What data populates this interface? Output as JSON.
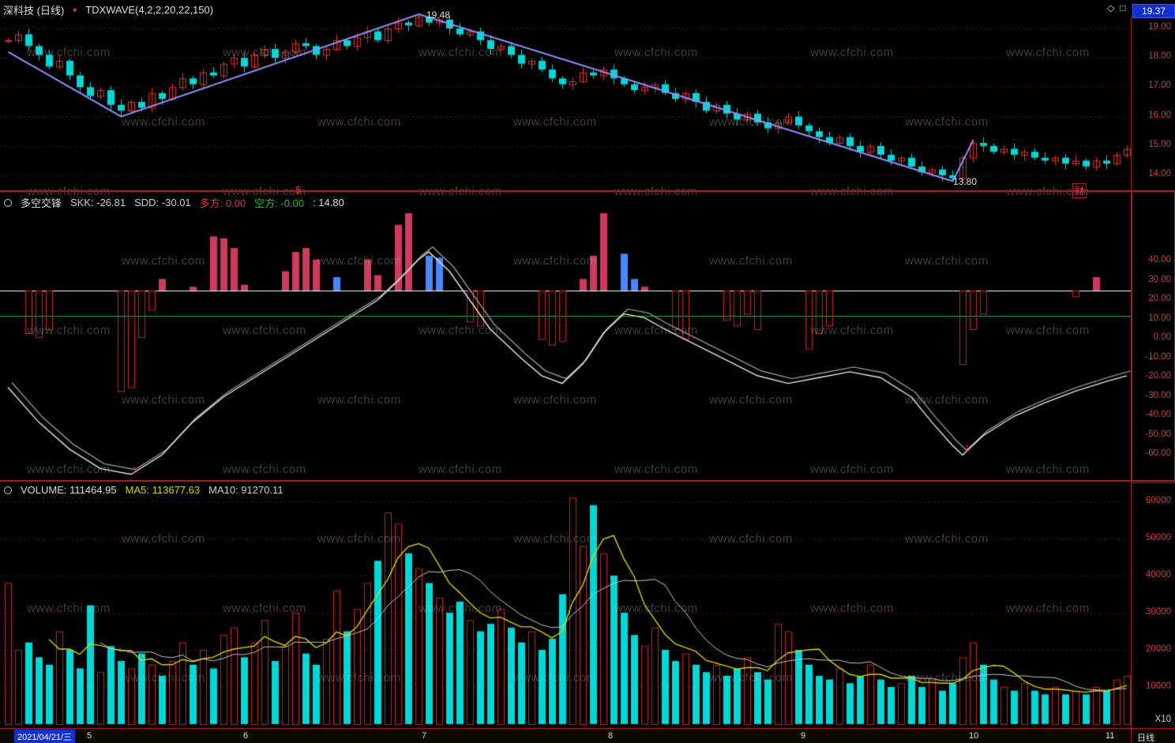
{
  "title_bar": {
    "title": "深科技 (日线)",
    "formula": "TDXWAVE(4,2,2,20,22,150)",
    "last_price": "19.37"
  },
  "icons": {
    "dropdown": "▼",
    "diamond": "◇",
    "restore": "□",
    "arrow_up": "↑"
  },
  "markers": {
    "dollar": "$",
    "cai": "财",
    "peak_label": "19.48",
    "trough_label": "13.80"
  },
  "dk_header": {
    "name": "多空交锋",
    "skk": "SKK: -26.81",
    "sdd": "SDD: -30.01",
    "duo": "多方: 0.00",
    "kong": "空方: -0.00",
    "close": ": 14.80"
  },
  "vol_header": {
    "volume": "VOLUME: 111464.95",
    "ma5": "MA5: 113677.63",
    "ma10": "MA10: 91270.11"
  },
  "axes": {
    "price": [
      "19.00",
      "18.00",
      "17.00",
      "16.00",
      "15.00",
      "14.00"
    ],
    "dk": [
      "40.00",
      "30.00",
      "20.00",
      "10.00",
      "0.00",
      "-10.00",
      "-20.00",
      "-30.00",
      "-40.00",
      "-50.00",
      "-60.00"
    ],
    "vol": [
      "60000",
      "50000",
      "40000",
      "30000",
      "20000",
      "10000"
    ],
    "vol_multiplier": "X10"
  },
  "status_bar": {
    "date": "2021/04/21/三",
    "ticks": [
      "5",
      "6",
      "7",
      "8",
      "9",
      "10",
      "11"
    ],
    "period": "日线"
  },
  "watermark": "www.cfchi.com",
  "colors": {
    "up": "#e03333",
    "down": "#00d7d7",
    "wave": "#9090ff",
    "bar_red": "#cf3a5f",
    "bar_blue": "#4a86ff",
    "outline_red": "#cc2222",
    "ma5": "#d6d600",
    "ma10": "#c8c8c8",
    "axis_text": "#cf3a3a",
    "green_line": "#00b050",
    "zero_line": "#ffffff",
    "price_box_bg": "#1230cf"
  },
  "chart_data": [
    {
      "type": "candlestick",
      "panel": "main",
      "title": "深科技 日线",
      "y_ticks": [
        19,
        18,
        17,
        16,
        15,
        14
      ],
      "ylim": [
        13.5,
        19.6
      ],
      "closes": [
        18.6,
        18.8,
        18.4,
        18.1,
        17.7,
        17.9,
        17.4,
        17.0,
        16.7,
        16.9,
        16.4,
        16.2,
        16.5,
        16.3,
        16.8,
        16.6,
        17.0,
        17.3,
        17.1,
        17.5,
        17.4,
        17.8,
        18.0,
        17.7,
        18.1,
        18.3,
        18.0,
        18.2,
        18.5,
        18.4,
        18.1,
        18.3,
        18.6,
        18.4,
        18.7,
        18.9,
        18.6,
        19.0,
        19.2,
        19.1,
        19.4,
        19.2,
        19.3,
        19.0,
        18.8,
        18.9,
        18.6,
        18.3,
        18.4,
        18.1,
        17.8,
        17.9,
        17.6,
        17.3,
        17.1,
        17.2,
        17.5,
        17.4,
        17.6,
        17.3,
        17.1,
        16.9,
        17.0,
        17.1,
        16.8,
        16.6,
        16.8,
        16.5,
        16.2,
        16.4,
        16.1,
        15.9,
        16.1,
        15.8,
        15.6,
        15.8,
        16.0,
        15.7,
        15.5,
        15.3,
        15.1,
        15.3,
        15.0,
        14.8,
        15.0,
        14.7,
        14.5,
        14.6,
        14.3,
        14.1,
        14.2,
        14.0,
        13.9,
        14.6,
        15.1,
        15.0,
        14.8,
        14.9,
        14.7,
        14.8,
        14.6,
        14.5,
        14.6,
        14.4,
        14.5,
        14.3,
        14.5,
        14.4,
        14.7,
        14.9
      ],
      "wave_points": [
        [
          0,
          18.2
        ],
        [
          11,
          16.0
        ],
        [
          40,
          19.48
        ],
        [
          92,
          13.8
        ],
        [
          94,
          15.2
        ]
      ],
      "peak_label": "19.48",
      "trough_label": "13.80"
    },
    {
      "type": "histogram_line",
      "panel": "多空交锋",
      "skk": -26.81,
      "sdd": -30.01,
      "duofang": 0.0,
      "kongfang": 0.0,
      "price": 14.8,
      "y_ticks": [
        40,
        30,
        20,
        10,
        0,
        -10,
        -20,
        -30,
        -40,
        -50,
        -60
      ],
      "values": [
        0,
        0,
        -22,
        -24,
        -20,
        0,
        0,
        0,
        0,
        0,
        0,
        -52,
        -50,
        -24,
        -10,
        6,
        0,
        0,
        2,
        0,
        28,
        27,
        22,
        3,
        0,
        0,
        0,
        10,
        20,
        22,
        16,
        0,
        7,
        0,
        0,
        16,
        8,
        0,
        34,
        40,
        0,
        18,
        17,
        0,
        0,
        -16,
        -18,
        0,
        0,
        0,
        0,
        0,
        -25,
        -28,
        -26,
        0,
        6,
        18,
        40,
        0,
        19,
        6,
        2,
        0,
        0,
        -20,
        -25,
        0,
        0,
        0,
        -15,
        -18,
        -12,
        -20,
        0,
        0,
        0,
        0,
        -30,
        -22,
        -18,
        0,
        0,
        0,
        0,
        0,
        0,
        0,
        0,
        0,
        0,
        0,
        0,
        -38,
        -20,
        -12,
        0,
        0,
        0,
        0,
        0,
        0,
        0,
        0,
        -3,
        0,
        7,
        0,
        0,
        0
      ],
      "blue_indices": [
        32,
        41,
        42,
        60,
        61
      ],
      "skk_points": [
        [
          0,
          -50
        ],
        [
          3,
          -68
        ],
        [
          6,
          -82
        ],
        [
          9,
          -92
        ],
        [
          12,
          -95
        ],
        [
          15,
          -85
        ],
        [
          18,
          -68
        ],
        [
          21,
          -55
        ],
        [
          24,
          -45
        ],
        [
          27,
          -35
        ],
        [
          30,
          -25
        ],
        [
          33,
          -15
        ],
        [
          36,
          -5
        ],
        [
          38,
          5
        ],
        [
          40,
          16
        ],
        [
          41,
          20
        ],
        [
          43,
          10
        ],
        [
          45,
          -5
        ],
        [
          47,
          -20
        ],
        [
          50,
          -35
        ],
        [
          52,
          -44
        ],
        [
          54,
          -48
        ],
        [
          56,
          -38
        ],
        [
          58,
          -22
        ],
        [
          60,
          -12
        ],
        [
          62,
          -14
        ],
        [
          64,
          -20
        ],
        [
          67,
          -28
        ],
        [
          70,
          -36
        ],
        [
          73,
          -44
        ],
        [
          76,
          -48
        ],
        [
          79,
          -45
        ],
        [
          82,
          -42
        ],
        [
          85,
          -45
        ],
        [
          88,
          -55
        ],
        [
          90,
          -68
        ],
        [
          92,
          -80
        ],
        [
          93,
          -85
        ],
        [
          95,
          -75
        ],
        [
          98,
          -65
        ],
        [
          101,
          -58
        ],
        [
          104,
          -52
        ],
        [
          107,
          -47
        ],
        [
          109,
          -44
        ]
      ],
      "signal_arrow_indices": [
        13,
        94
      ]
    },
    {
      "type": "bar",
      "panel": "VOLUME",
      "volume": 111464.95,
      "ma5": 113677.63,
      "ma10": 91270.11,
      "unit_multiplier": "X10",
      "y_ticks": [
        60000,
        50000,
        40000,
        30000,
        20000,
        10000
      ],
      "values": [
        38000,
        20000,
        22000,
        18000,
        16000,
        25000,
        20000,
        15000,
        32000,
        14000,
        21000,
        17000,
        15000,
        19000,
        16000,
        13000,
        17000,
        22000,
        16000,
        20000,
        15000,
        24000,
        26000,
        18000,
        22000,
        28000,
        17000,
        21000,
        30000,
        19000,
        16000,
        23000,
        36000,
        25000,
        31000,
        38000,
        44000,
        57000,
        54000,
        46000,
        42000,
        38000,
        34000,
        30000,
        33000,
        28000,
        25000,
        27000,
        31000,
        26000,
        22000,
        25000,
        20000,
        23000,
        35000,
        61000,
        48000,
        59000,
        46000,
        40000,
        30000,
        24000,
        21000,
        26000,
        20000,
        17000,
        19000,
        16000,
        14000,
        16000,
        13000,
        15000,
        18000,
        14000,
        12000,
        27000,
        25000,
        20000,
        16000,
        13000,
        12000,
        15000,
        11000,
        13000,
        16000,
        12000,
        10000,
        11000,
        13000,
        10000,
        12000,
        9000,
        11000,
        18000,
        22000,
        16000,
        12000,
        10000,
        9000,
        11000,
        9000,
        8000,
        10000,
        8000,
        9000,
        8000,
        10000,
        9000,
        12000,
        13000
      ]
    }
  ]
}
